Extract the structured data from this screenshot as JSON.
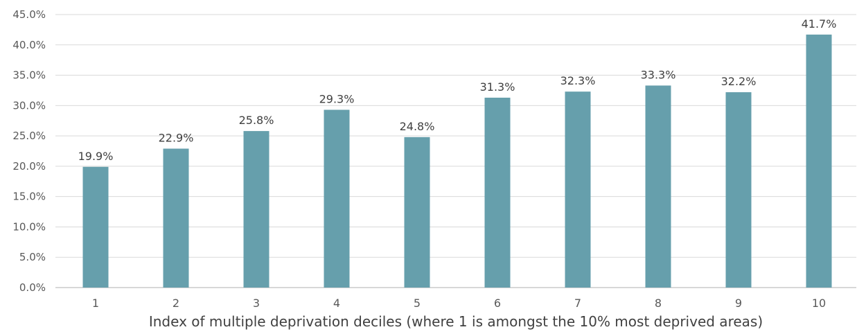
{
  "chart_data": {
    "type": "bar",
    "title": "",
    "xlabel": "Index of multiple deprivation deciles (where 1 is amongst the 10% most deprived areas)",
    "ylabel": "",
    "categories": [
      "1",
      "2",
      "3",
      "4",
      "5",
      "6",
      "7",
      "8",
      "9",
      "10"
    ],
    "values": [
      19.9,
      22.9,
      25.8,
      29.3,
      24.8,
      31.3,
      32.3,
      33.3,
      32.2,
      41.7
    ],
    "data_labels": [
      "19.9%",
      "22.9%",
      "25.8%",
      "29.3%",
      "24.8%",
      "31.3%",
      "32.3%",
      "33.3%",
      "32.2%",
      "41.7%"
    ],
    "yticks": [
      0,
      5,
      10,
      15,
      20,
      25,
      30,
      35,
      40,
      45
    ],
    "ytick_labels": [
      "0.0%",
      "5.0%",
      "10.0%",
      "15.0%",
      "20.0%",
      "25.0%",
      "30.0%",
      "35.0%",
      "40.0%",
      "45.0%"
    ],
    "ylim": [
      0,
      45
    ],
    "grid": true,
    "legend": "none",
    "bar_color": "#669fac"
  }
}
